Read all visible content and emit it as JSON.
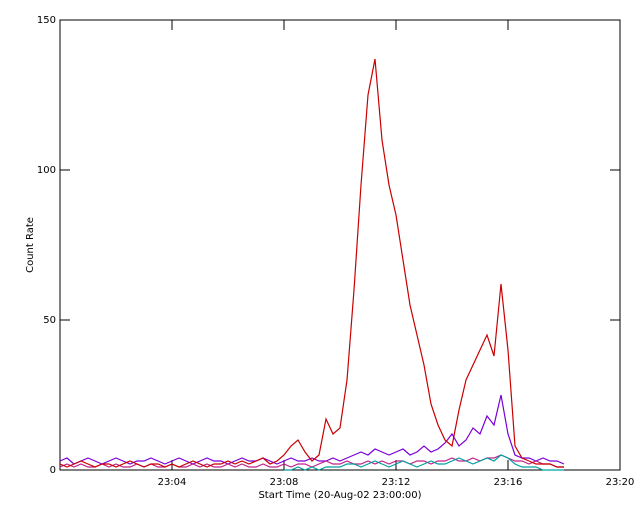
{
  "chart_data": {
    "type": "line",
    "xlabel": "Start Time (20-Aug-02 23:00:00)",
    "ylabel": "Count Rate",
    "xlim": [
      0,
      20
    ],
    "xticks": [
      {
        "value": 4,
        "label": "23:04"
      },
      {
        "value": 8,
        "label": "23:08"
      },
      {
        "value": 12,
        "label": "23:12"
      },
      {
        "value": 16,
        "label": "23:16"
      },
      {
        "value": 20,
        "label": "23:20"
      }
    ],
    "ylim": [
      0,
      150
    ],
    "yticks": [
      0,
      50,
      100,
      150
    ],
    "x": [
      0,
      0.25,
      0.5,
      0.75,
      1,
      1.25,
      1.5,
      1.75,
      2,
      2.25,
      2.5,
      2.75,
      3,
      3.25,
      3.5,
      3.75,
      4,
      4.25,
      4.5,
      4.75,
      5,
      5.25,
      5.5,
      5.75,
      6,
      6.25,
      6.5,
      6.75,
      7,
      7.25,
      7.5,
      7.75,
      8,
      8.25,
      8.5,
      8.75,
      9,
      9.25,
      9.5,
      9.75,
      10,
      10.25,
      10.5,
      10.75,
      11,
      11.25,
      11.5,
      11.75,
      12,
      12.25,
      12.5,
      12.75,
      13,
      13.25,
      13.5,
      13.75,
      14,
      14.25,
      14.5,
      14.75,
      15,
      15.25,
      15.5,
      15.75,
      16,
      16.25,
      16.5,
      16.75,
      17,
      17.25,
      17.5,
      17.75,
      18
    ],
    "series": [
      {
        "color": "#7a00d8",
        "values": [
          3,
          4,
          2,
          3,
          4,
          3,
          2,
          3,
          4,
          3,
          2,
          3,
          3,
          4,
          3,
          2,
          3,
          4,
          3,
          2,
          3,
          4,
          3,
          3,
          2,
          3,
          4,
          3,
          3,
          4,
          3,
          2,
          3,
          4,
          3,
          3,
          4,
          3,
          3,
          4,
          3,
          4,
          5,
          6,
          5,
          7,
          6,
          5,
          6,
          7,
          5,
          6,
          8,
          6,
          7,
          9,
          12,
          8,
          10,
          14,
          12,
          18,
          15,
          25,
          12,
          5,
          4,
          4,
          3,
          4,
          3,
          3,
          2
        ]
      },
      {
        "color": "#c0208a",
        "values": [
          1,
          2,
          1,
          2,
          1,
          1,
          2,
          1,
          2,
          1,
          1,
          2,
          1,
          2,
          1,
          1,
          2,
          1,
          1,
          2,
          1,
          2,
          1,
          1,
          2,
          1,
          2,
          1,
          1,
          2,
          1,
          1,
          2,
          1,
          2,
          2,
          1,
          2,
          3,
          2,
          2,
          3,
          2,
          2,
          3,
          2,
          3,
          2,
          3,
          3,
          2,
          3,
          3,
          2,
          3,
          3,
          4,
          3,
          3,
          4,
          3,
          4,
          4,
          5,
          4,
          3,
          3,
          2,
          3,
          2,
          2,
          1,
          1
        ]
      },
      {
        "color": "#00a0a0",
        "values": [
          null,
          null,
          null,
          null,
          null,
          null,
          null,
          null,
          null,
          null,
          null,
          null,
          null,
          null,
          null,
          null,
          null,
          null,
          null,
          null,
          null,
          null,
          null,
          null,
          null,
          null,
          null,
          null,
          null,
          null,
          null,
          null,
          0,
          0,
          1,
          0,
          1,
          0,
          1,
          1,
          1,
          2,
          2,
          1,
          2,
          3,
          2,
          1,
          2,
          3,
          2,
          1,
          2,
          3,
          2,
          2,
          3,
          4,
          3,
          2,
          3,
          4,
          3,
          5,
          4,
          2,
          1,
          1,
          1,
          0,
          0,
          0,
          0
        ]
      },
      {
        "color": "#c80000",
        "values": [
          2,
          1,
          2,
          3,
          2,
          1,
          2,
          2,
          1,
          2,
          3,
          2,
          1,
          2,
          2,
          1,
          2,
          1,
          2,
          3,
          2,
          1,
          2,
          2,
          3,
          2,
          3,
          2,
          3,
          4,
          2,
          3,
          5,
          8,
          10,
          6,
          3,
          5,
          17,
          12,
          14,
          30,
          60,
          95,
          125,
          137,
          110,
          95,
          85,
          70,
          55,
          45,
          35,
          22,
          15,
          10,
          8,
          20,
          30,
          35,
          40,
          45,
          38,
          62,
          40,
          8,
          4,
          3,
          2,
          2,
          2,
          1,
          1
        ]
      }
    ]
  }
}
